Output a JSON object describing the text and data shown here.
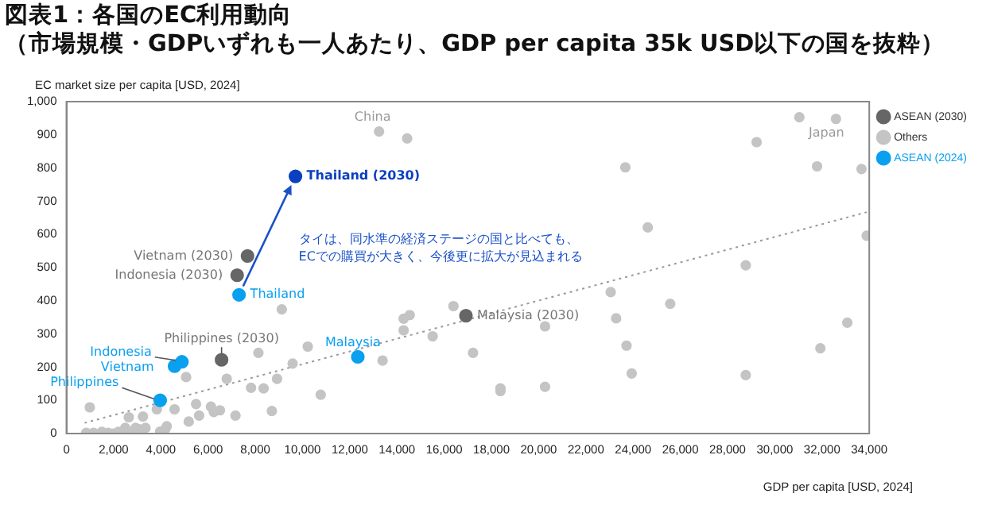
{
  "chart_data": {
    "type": "scatter",
    "title": "図表1：各国のEC利用動向",
    "subtitle": "（市場規模・GDPいずれも一人あたり、GDP per capita 35k USD以下の国を抜粋）",
    "xlabel": "GDP per capita [USD, 2024]",
    "ylabel": "EC market size per capita [USD, 2024]",
    "xlim": [
      0,
      34000
    ],
    "ylim": [
      0,
      1000
    ],
    "xticks": [
      0,
      {
        "value": 2000,
        "label": "2,000"
      },
      {
        "value": 4000,
        "label": "4,000"
      },
      {
        "value": 6000,
        "label": "6,000"
      },
      {
        "value": 8000,
        "label": "8,000"
      },
      {
        "value": 10000,
        "label": "10,000"
      },
      {
        "value": 12000,
        "label": "12,000"
      },
      {
        "value": 14000,
        "label": "14,000"
      },
      {
        "value": 16000,
        "label": "16,000"
      },
      {
        "value": 18000,
        "label": "18,000"
      },
      {
        "value": 20000,
        "label": "20,000"
      },
      {
        "value": 22000,
        "label": "22,000"
      },
      {
        "value": 24000,
        "label": "24,000"
      },
      {
        "value": 26000,
        "label": "26,000"
      },
      {
        "value": 28000,
        "label": "28,000"
      },
      {
        "value": 30000,
        "label": "30,000"
      },
      {
        "value": 32000,
        "label": "32,000"
      },
      {
        "value": 34000,
        "label": "34,000"
      }
    ],
    "yticks": [
      0,
      100,
      200,
      300,
      400,
      500,
      600,
      700,
      800,
      900,
      {
        "value": 1000,
        "label": "1,000"
      }
    ],
    "grid": false,
    "legend": "top right",
    "marker": "circle",
    "series": [
      {
        "name": "ASEAN (2030)",
        "color": "#666666",
        "colors": [
          "#0a3fc0",
          "#666666",
          "#666666",
          "#666666",
          "#666666"
        ],
        "x": [
          9700,
          7670,
          7230,
          6570,
          16920
        ],
        "values": [
          775,
          535,
          477,
          222,
          355
        ]
      },
      {
        "name": "Others",
        "color": "#c4c4c4",
        "x": [
          13240,
          14430,
          31040,
          32590,
          29230,
          23670,
          31790,
          33670,
          24620,
          33890,
          28770,
          23050,
          25570,
          23280,
          20270,
          17220,
          33070,
          23720,
          31930,
          23940,
          28770,
          18380,
          18380,
          20270,
          9120,
          16390,
          14280,
          14540,
          14280,
          15510,
          8130,
          10220,
          9580,
          13390,
          5070,
          6790,
          8920,
          7820,
          8350,
          10770,
          8700,
          990,
          3830,
          4580,
          5490,
          5620,
          5180,
          6120,
          6240,
          6500,
          7160,
          2640,
          3240,
          4190,
          4250,
          840,
          1150,
          1500,
          1760,
          1980,
          2200,
          2490,
          2750,
          2930,
          3080,
          3350,
          3970
        ],
        "values": [
          910,
          889,
          953,
          948,
          878,
          802,
          805,
          797,
          621,
          596,
          507,
          426,
          391,
          347,
          323,
          243,
          334,
          265,
          257,
          181,
          176,
          136,
          128,
          141,
          374,
          384,
          346,
          357,
          311,
          293,
          243,
          262,
          211,
          220,
          170,
          165,
          165,
          138,
          136,
          117,
          68,
          79,
          73,
          73,
          89,
          54,
          36,
          81,
          65,
          70,
          54,
          49,
          51,
          14,
          22,
          2,
          2,
          5,
          2,
          0,
          5,
          17,
          5,
          17,
          13,
          17,
          6
        ]
      },
      {
        "name": "ASEAN (2024)",
        "color": "#0aa0f0",
        "x": [
          7310,
          4890,
          4580,
          3970,
          12340
        ],
        "values": [
          418,
          216,
          203,
          100,
          231
        ]
      },
      {
        "type": "line",
        "color": "#999999",
        "line_style": "dotted",
        "marker": "none",
        "x": [
          770,
          33890
        ],
        "values": [
          32,
          667
        ]
      }
    ],
    "annotations": [
      {
        "text": "China",
        "x": 13240,
        "y": 910
      },
      {
        "text": "Japan",
        "x": 32590,
        "y": 948
      },
      {
        "text": "Thailand (2030)",
        "x": 9700,
        "y": 775
      },
      {
        "text": "Vietnam (2030)",
        "x": 7670,
        "y": 535
      },
      {
        "text": "Indonesia (2030)",
        "x": 7230,
        "y": 477
      },
      {
        "text": "Thailand",
        "x": 7310,
        "y": 418
      },
      {
        "text": "Philippines (2030)",
        "x": 6570,
        "y": 222
      },
      {
        "text": "Indonesia",
        "x": 4890,
        "y": 216
      },
      {
        "text": "Vietnam",
        "x": 4580,
        "y": 203
      },
      {
        "text": "Philippines",
        "x": 3970,
        "y": 100
      },
      {
        "text": "Malaysia",
        "x": 12340,
        "y": 231
      },
      {
        "text": "Malaysia (2030)",
        "x": 16920,
        "y": 355
      },
      "タイは、同水準の経済ステージの国と比べても、\nECでの購買が大きく、今後更に拡大が見込まれる"
    ]
  }
}
